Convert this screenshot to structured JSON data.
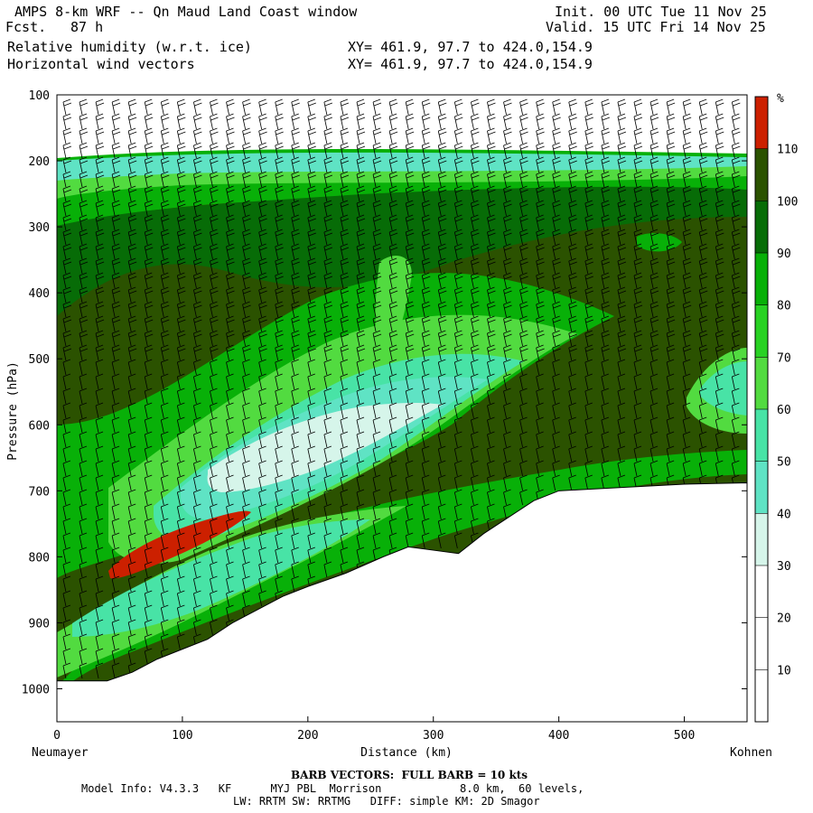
{
  "header": {
    "title": "AMPS 8-km WRF -- Qn Maud Land Coast window",
    "fcst_label": "Fcst.",
    "fcst_value": "87 h",
    "field1": "Relative humidity (w.r.t. ice)",
    "field2": "Horizontal wind vectors",
    "init": "Init. 00 UTC Tue 11 Nov 25",
    "valid": "Valid. 15 UTC Fri 14 Nov 25",
    "xy1": "XY= 461.9, 97.7 to 424.0,154.9",
    "xy2": "XY= 461.9, 97.7 to 424.0,154.9"
  },
  "chart_data": {
    "type": "heatmap",
    "title": "",
    "xlabel": "Distance (km)",
    "ylabel": "Pressure (hPa)",
    "xlim": [
      0,
      550
    ],
    "ylim": [
      1050,
      100
    ],
    "x_ticks": [
      0,
      100,
      200,
      300,
      400,
      500
    ],
    "y_ticks": [
      100,
      200,
      300,
      400,
      500,
      600,
      700,
      800,
      900,
      1000
    ],
    "left_endpoint": "Neumayer",
    "right_endpoint": "Kohnen",
    "colorbar": {
      "unit": "%",
      "levels": [
        10,
        20,
        30,
        40,
        50,
        60,
        70,
        80,
        90,
        100,
        110
      ],
      "colors": [
        "#ffffff",
        "#ffffff",
        "#d6f5ea",
        "#5fe3c4",
        "#48e3a6",
        "#52db40",
        "#28d223",
        "#08b008",
        "#076c07",
        "#2b5200",
        "#cc2000"
      ]
    },
    "terrain_surface_hpa": [
      [
        0,
        988
      ],
      [
        40,
        988
      ],
      [
        60,
        975
      ],
      [
        80,
        955
      ],
      [
        100,
        940
      ],
      [
        120,
        925
      ],
      [
        140,
        900
      ],
      [
        160,
        880
      ],
      [
        180,
        860
      ],
      [
        200,
        845
      ],
      [
        230,
        825
      ],
      [
        260,
        800
      ],
      [
        280,
        785
      ],
      [
        300,
        790
      ],
      [
        320,
        795
      ],
      [
        340,
        765
      ],
      [
        360,
        740
      ],
      [
        380,
        715
      ],
      [
        400,
        700
      ],
      [
        450,
        695
      ],
      [
        500,
        690
      ],
      [
        550,
        688
      ]
    ]
  },
  "footer": {
    "barb_note": "BARB VECTORS:  FULL BARB = 10 kts",
    "model_info_1": "Model Info: V4.3.3   KF      MYJ PBL  Morrison            8.0 km,  60 levels,",
    "model_info_2": "LW: RRTM SW: RRTMG   DIFF: simple KM: 2D Smagor"
  }
}
